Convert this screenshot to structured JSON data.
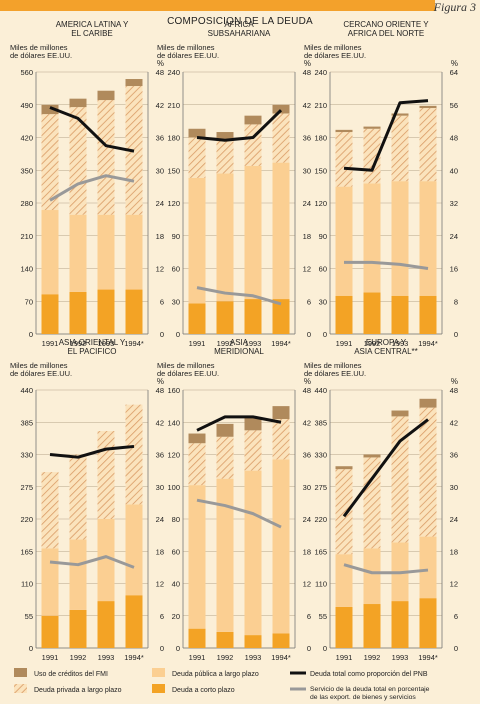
{
  "figure_label": "Figura 3",
  "title": "COMPOSICION DE LA DEUDA",
  "colors": {
    "fmi": "#b08a5c",
    "privada_stripe": "#d99b65",
    "publica": "#fbcf92",
    "corta": "#f3a325",
    "line_pnb": "#111111",
    "line_servicio": "#999999",
    "grid": "#b5a48a",
    "page_bg": "#fbefd7"
  },
  "legend": {
    "items": [
      {
        "key": "fmi",
        "label": "Uso de créditos del FMI"
      },
      {
        "key": "privada",
        "label": "Deuda privada a largo plazo"
      },
      {
        "key": "publica",
        "label": "Deuda pública a largo plazo"
      },
      {
        "key": "corta",
        "label": "Deuda a corto plazo"
      },
      {
        "key": "pnb",
        "label": "Deuda total como proporción del PNB"
      },
      {
        "key": "servicio",
        "label": "Servicio de la deuda total en porcentaje de las export. de bienes y servicios"
      }
    ]
  },
  "chart_data": [
    {
      "type": "bar",
      "title": "AMERICA LATINA Y EL CARIBE",
      "ylabel": "Miles de millones de dólares EE.UU.",
      "y2label": "%",
      "categories": [
        "1991",
        "1992",
        "1993",
        "1994*"
      ],
      "ylim": [
        0,
        560
      ],
      "yticks": [
        0,
        70,
        140,
        210,
        280,
        350,
        420,
        490,
        560
      ],
      "y2lim": [
        0,
        48
      ],
      "y2ticks": [
        0,
        6,
        12,
        18,
        24,
        30,
        36,
        42,
        48
      ],
      "series": [
        {
          "name": "Deuda a corto plazo",
          "values": [
            85,
            90,
            95,
            95
          ]
        },
        {
          "name": "Deuda pública a largo plazo",
          "values": [
            180,
            165,
            160,
            160
          ]
        },
        {
          "name": "Deuda privada a largo plazo",
          "values": [
            205,
            230,
            245,
            275
          ]
        },
        {
          "name": "Uso de créditos del FMI",
          "values": [
            20,
            18,
            20,
            15
          ]
        }
      ],
      "lines": [
        {
          "name": "Deuda total como proporción del PNB",
          "values": [
            41.5,
            39.5,
            34.5,
            33.5
          ]
        },
        {
          "name": "Servicio de la deuda total en porcentaje de las export. de bienes y servicios",
          "values": [
            24.5,
            27.5,
            29.0,
            28.0
          ]
        }
      ]
    },
    {
      "type": "bar",
      "title": "AFRICA SUBSAHARIANA",
      "ylabel": "Miles de millones de dólares EE.UU.",
      "y2label": "%",
      "categories": [
        "1991",
        "1992",
        "1993",
        "1994*"
      ],
      "ylim": [
        0,
        240
      ],
      "yticks": [
        0,
        30,
        60,
        90,
        120,
        150,
        180,
        210,
        240
      ],
      "y2lim": [
        0,
        48
      ],
      "y2ticks": [
        0,
        6,
        12,
        18,
        24,
        30,
        36,
        42,
        48
      ],
      "series": [
        {
          "name": "Deuda a corto plazo",
          "values": [
            28,
            30,
            32,
            32
          ]
        },
        {
          "name": "Deuda pública a largo plazo",
          "values": [
            115,
            117,
            122,
            125
          ]
        },
        {
          "name": "Deuda privada a largo plazo",
          "values": [
            37,
            30,
            38,
            45
          ]
        },
        {
          "name": "Uso de créditos del FMI",
          "values": [
            8,
            8,
            8,
            8
          ]
        }
      ],
      "lines": [
        {
          "name": "Deuda total como proporción del PNB",
          "values": [
            36,
            35.5,
            36,
            41
          ]
        },
        {
          "name": "Servicio de la deuda total en porcentaje de las export. de bienes y servicios",
          "values": [
            8.5,
            7.5,
            7.0,
            5.5
          ]
        }
      ]
    },
    {
      "type": "bar",
      "title": "CERCANO ORIENTE Y AFRICA DEL NORTE",
      "ylabel": "Miles de millones de dólares EE.UU.",
      "y2label": "%",
      "categories": [
        "1991",
        "1992",
        "1993",
        "1994*"
      ],
      "ylim": [
        0,
        240
      ],
      "yticks": [
        0,
        30,
        60,
        90,
        120,
        150,
        180,
        210,
        240
      ],
      "y2lim": [
        0,
        64
      ],
      "y2ticks": [
        0,
        8,
        16,
        24,
        32,
        40,
        48,
        56,
        64
      ],
      "series": [
        {
          "name": "Deuda a corto plazo",
          "values": [
            35,
            38,
            35,
            35
          ]
        },
        {
          "name": "Deuda pública a largo plazo",
          "values": [
            100,
            100,
            105,
            105
          ]
        },
        {
          "name": "Deuda privada a largo plazo",
          "values": [
            50,
            50,
            60,
            67
          ]
        },
        {
          "name": "Uso de créditos del FMI",
          "values": [
            2,
            2,
            2,
            2
          ]
        }
      ],
      "lines": [
        {
          "name": "Deuda total como proporción del PNB",
          "values": [
            40.5,
            40,
            56.5,
            57
          ]
        },
        {
          "name": "Servicio de la deuda total en porcentaje de las export. de bienes y servicios",
          "values": [
            17.5,
            17.5,
            17,
            16
          ]
        }
      ]
    },
    {
      "type": "bar",
      "title": "ASIA ORIENTAL Y EL PACIFICO",
      "ylabel": "Miles de millones de dólares EE.UU.",
      "y2label": "%",
      "categories": [
        "1991",
        "1992",
        "1993",
        "1994*"
      ],
      "ylim": [
        0,
        440
      ],
      "yticks": [
        0,
        55,
        110,
        165,
        220,
        275,
        330,
        385,
        440
      ],
      "y2lim": [
        0,
        48
      ],
      "y2ticks": [
        0,
        6,
        12,
        18,
        24,
        30,
        36,
        42,
        48
      ],
      "series": [
        {
          "name": "Deuda a corto plazo",
          "values": [
            55,
            65,
            80,
            90
          ]
        },
        {
          "name": "Deuda pública a largo plazo",
          "values": [
            115,
            120,
            140,
            155
          ]
        },
        {
          "name": "Deuda privada a largo plazo",
          "values": [
            130,
            145,
            150,
            170
          ]
        },
        {
          "name": "Uso de créditos del FMI",
          "values": [
            0,
            0,
            0,
            0
          ]
        }
      ],
      "lines": [
        {
          "name": "Deuda total como proporción del PNB",
          "values": [
            36,
            35.5,
            37,
            37.5
          ]
        },
        {
          "name": "Servicio de la deuda total en porcentaje de las export. de bienes y servicios",
          "values": [
            16,
            15.5,
            17,
            15
          ]
        }
      ]
    },
    {
      "type": "bar",
      "title": "ASIA MERIDIONAL",
      "ylabel": "Miles de millones de dólares EE.UU.",
      "y2label": "%",
      "categories": [
        "1991",
        "1992",
        "1993",
        "1994*"
      ],
      "ylim": [
        0,
        160
      ],
      "yticks": [
        0,
        20,
        40,
        60,
        80,
        100,
        120,
        140,
        160
      ],
      "y2lim": [
        0,
        48
      ],
      "y2ticks": [
        0,
        6,
        12,
        18,
        24,
        30,
        36,
        42,
        48
      ],
      "series": [
        {
          "name": "Deuda a corto plazo",
          "values": [
            12,
            10,
            8,
            9
          ]
        },
        {
          "name": "Deuda pública a largo plazo",
          "values": [
            89,
            95,
            102,
            108
          ]
        },
        {
          "name": "Deuda privada a largo plazo",
          "values": [
            26,
            26,
            25,
            25
          ]
        },
        {
          "name": "Uso de créditos del FMI",
          "values": [
            6,
            8,
            8,
            8
          ]
        }
      ],
      "lines": [
        {
          "name": "Deuda total como proporción del PNB",
          "values": [
            40.5,
            43,
            43,
            42
          ]
        },
        {
          "name": "Servicio de la deuda total en porcentaje de las export. de bienes y servicios",
          "values": [
            27.5,
            26.5,
            25,
            22.5
          ]
        }
      ]
    },
    {
      "type": "bar",
      "title": "EUROPA Y ASIA CENTRAL**",
      "ylabel": "Miles de millones de dólares EE.UU.",
      "y2label": "%",
      "categories": [
        "1991",
        "1992",
        "1993",
        "1994*"
      ],
      "ylim": [
        0,
        440
      ],
      "yticks": [
        0,
        55,
        110,
        165,
        220,
        275,
        330,
        385,
        440
      ],
      "y2lim": [
        0,
        48
      ],
      "y2ticks": [
        0,
        6,
        12,
        18,
        24,
        30,
        36,
        42,
        48
      ],
      "series": [
        {
          "name": "Deuda a corto plazo",
          "values": [
            70,
            75,
            80,
            85
          ]
        },
        {
          "name": "Deuda pública a largo plazo",
          "values": [
            90,
            95,
            100,
            105
          ]
        },
        {
          "name": "Deuda privada a largo plazo",
          "values": [
            145,
            155,
            215,
            220
          ]
        },
        {
          "name": "Uso de créditos del FMI",
          "values": [
            5,
            5,
            10,
            15
          ]
        }
      ],
      "lines": [
        {
          "name": "Deuda total como proporción del PNB",
          "values": [
            24.5,
            31.5,
            38.5,
            42.5
          ]
        },
        {
          "name": "Servicio de la deuda total en porcentaje de las export. de bienes y servicios",
          "values": [
            15.5,
            14,
            14,
            14.5
          ]
        }
      ]
    }
  ]
}
